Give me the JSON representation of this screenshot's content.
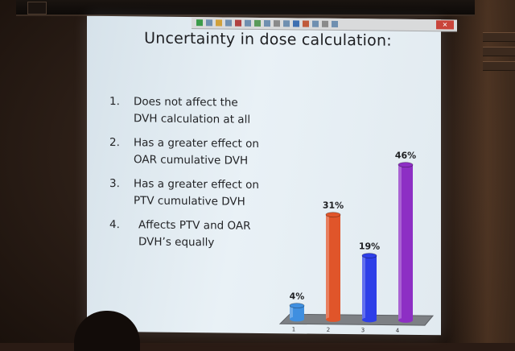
{
  "slide": {
    "title": "Uncertainty in dose calculation:",
    "options": [
      {
        "number": "1.",
        "line1": "Does not affect the",
        "line2": "DVH calculation at all"
      },
      {
        "number": "2.",
        "line1": "Has a greater effect on",
        "line2": "OAR cumulative DVH"
      },
      {
        "number": "3.",
        "line1": "Has a greater effect on",
        "line2": "PTV cumulative DVH"
      },
      {
        "number": "4.",
        "line1": "Affects PTV and OAR",
        "line2": "DVH’s equally"
      }
    ]
  },
  "toolbar": {
    "close_glyph": "✕"
  },
  "chart_data": {
    "type": "bar",
    "categories": [
      "1",
      "2",
      "3",
      "4"
    ],
    "values": [
      4,
      31,
      19,
      46
    ],
    "value_labels": [
      "4%",
      "31%",
      "19%",
      "46%"
    ],
    "colors": [
      "#3f8fe0",
      "#e0552a",
      "#2e3fe8",
      "#8d2fc4"
    ],
    "ylim": [
      0,
      50
    ],
    "title": "",
    "xlabel": "",
    "ylabel": ""
  }
}
